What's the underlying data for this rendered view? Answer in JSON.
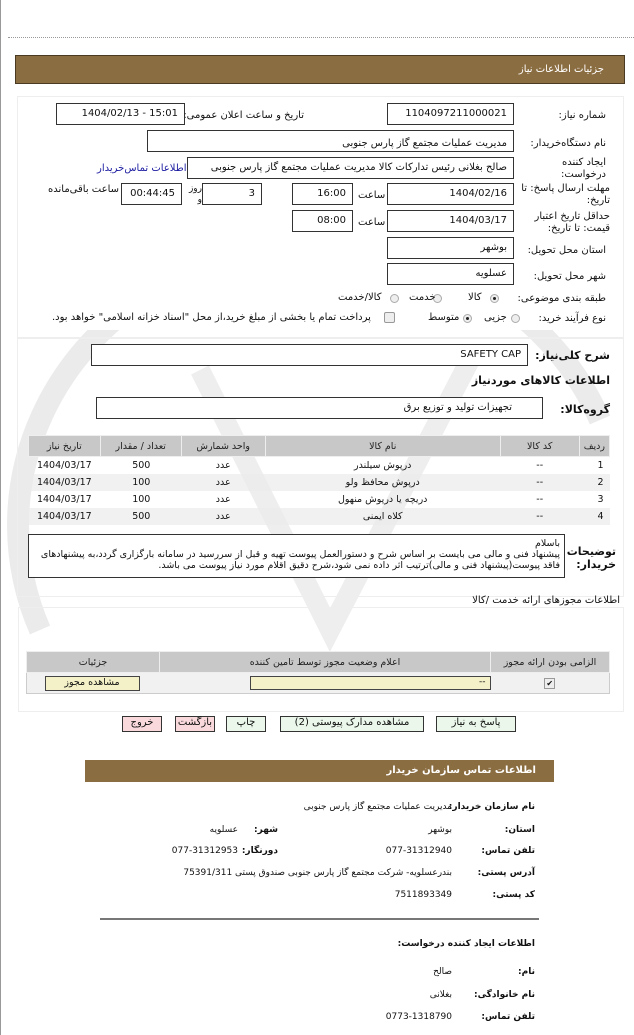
{
  "page_title": "جزئیات اطلاعات نیاز",
  "colors": {
    "header_bar": "#8b6d42",
    "button_green": "#eaf7ea",
    "button_pink": "#f9d9dc",
    "input_yellow": "#f4f1c8",
    "link": "#1a1aa0"
  },
  "need_info": {
    "need_number_label": "شماره نیاز:",
    "need_number": "1104097211000021",
    "announce_label": "تاریخ و ساعت اعلان عمومی:",
    "announce_value": "1404/02/13 - 15:01",
    "buyer_org_label": "نام دستگاه‌خریدار:",
    "buyer_org": "مدیریت عملیات مجتمع گاز پارس جنوبی",
    "requester_label": "ایجاد کننده درخواست:",
    "requester": "صالح بغلانی رئیس تدارکات کالا مدیریت عملیات مجتمع گاز پارس جنوبی",
    "contact_link": "اطلاعات تماس‌خریدار",
    "deadline_label": "مهلت ارسال پاسخ: تا تاریخ:",
    "deadline_date": "1404/02/16",
    "time_label": "ساعت",
    "deadline_time": "16:00",
    "days_label": "روز و",
    "days": "3",
    "remaining_time": "00:44:45",
    "remaining_label": "ساعت باقی‌مانده",
    "validity_label": "حداقل تاریخ اعتبار قیمت: تا تاریخ:",
    "validity_date": "1404/03/17",
    "validity_time": "08:00",
    "province_label": "استان محل تحویل:",
    "province": "بوشهر",
    "city_label": "شهر محل تحویل:",
    "city": "عسلویه",
    "category_label": "طبقه بندی موضوعی:",
    "category_options": [
      {
        "label": "کالا",
        "selected": true
      },
      {
        "label": "خدمت",
        "selected": false
      },
      {
        "label": "کالا/خدمت",
        "selected": false
      }
    ],
    "process_label": "نوع فرآیند خرید:",
    "process_options": [
      {
        "label": "جزیی",
        "selected": false
      },
      {
        "label": "متوسط",
        "selected": true
      }
    ],
    "treasury_checkbox_label": "پرداخت تمام یا بخشی از مبلغ خرید،از محل \"اسناد خزانه اسلامی\" خواهد بود.",
    "treasury_checked": false
  },
  "goods": {
    "summary_label": "شرح کلی‌نیاز:",
    "summary": "SAFETY CAP",
    "section_title": "اطلاعات کالاهای موردنیاز",
    "group_label": "گروه‌کالا:",
    "group": "تجهیزات تولید و توزیع برق",
    "columns": [
      "ردیف",
      "کد کالا",
      "نام کالا",
      "واحد شمارش",
      "تعداد / مقدار",
      "تاریخ نیاز"
    ],
    "rows": [
      [
        "1",
        "--",
        "درپوش سیلندر",
        "عدد",
        "500",
        "1404/03/17"
      ],
      [
        "2",
        "--",
        "درپوش محافظ ولو",
        "عدد",
        "100",
        "1404/03/17"
      ],
      [
        "3",
        "--",
        "دریچه یا درپوش منهول",
        "عدد",
        "100",
        "1404/03/17"
      ],
      [
        "4",
        "--",
        "کلاه ایمنی",
        "عدد",
        "500",
        "1404/03/17"
      ]
    ],
    "buyer_notes_label": "توضیحات خریدار:",
    "buyer_notes": "باسلام\nپیشنهاد فنی و مالی می بایست بر اساس شرح و دستورالعمل پیوست تهیه و قبل از سررسید در سامانه بارگزاری گردد،به پیشنهادهای فاقد پیوست(پیشنهاد فنی و مالی)ترتیب اثر داده نمی شود،شرح دقیق اقلام مورد نیاز پیوست می باشد."
  },
  "permits": {
    "title": "اطلاعات مجوزهای ارائه خدمت /کالا",
    "columns": [
      "الزامی بودن ارائه مجوز",
      "اعلام وضعیت مجوز توسط تامین کننده",
      "جزئیات"
    ],
    "required_checked": true,
    "status_value": "--",
    "view_button": "مشاهده مجوز"
  },
  "actions": {
    "reply": "پاسخ به نیاز",
    "attachments": "مشاهده مدارک پیوستی (2)",
    "print": "چاپ",
    "back": "بازگشت",
    "exit": "خروج"
  },
  "contact": {
    "title": "اطلاعات تماس سازمان خریدار",
    "org_label": "نام سازمان خریدار:",
    "org": "مدیریت عملیات مجتمع گاز پارس جنوبی",
    "province_label": "استان:",
    "province": "بوشهر",
    "city_label": "شهر:",
    "city": "عسلویه",
    "phone_label": "تلفن تماس:",
    "phone": "077-31312940",
    "fax_label": "دورنگار:",
    "fax": "077-31312953",
    "address_label": "آدرس پستی:",
    "address": "بندرعسلویه- شرکت مجتمع گاز پارس جنوبی صندوق پستی 75391/311",
    "postal_label": "کد پستی:",
    "postal": "7511893349",
    "requester_title": "اطلاعات ایجاد کننده درخواست:",
    "first_name_label": "نام:",
    "first_name": "صالح",
    "last_name_label": "نام خانوادگی:",
    "last_name": "بغلانی",
    "req_phone_label": "تلفن تماس:",
    "req_phone": "0773-1318790"
  }
}
